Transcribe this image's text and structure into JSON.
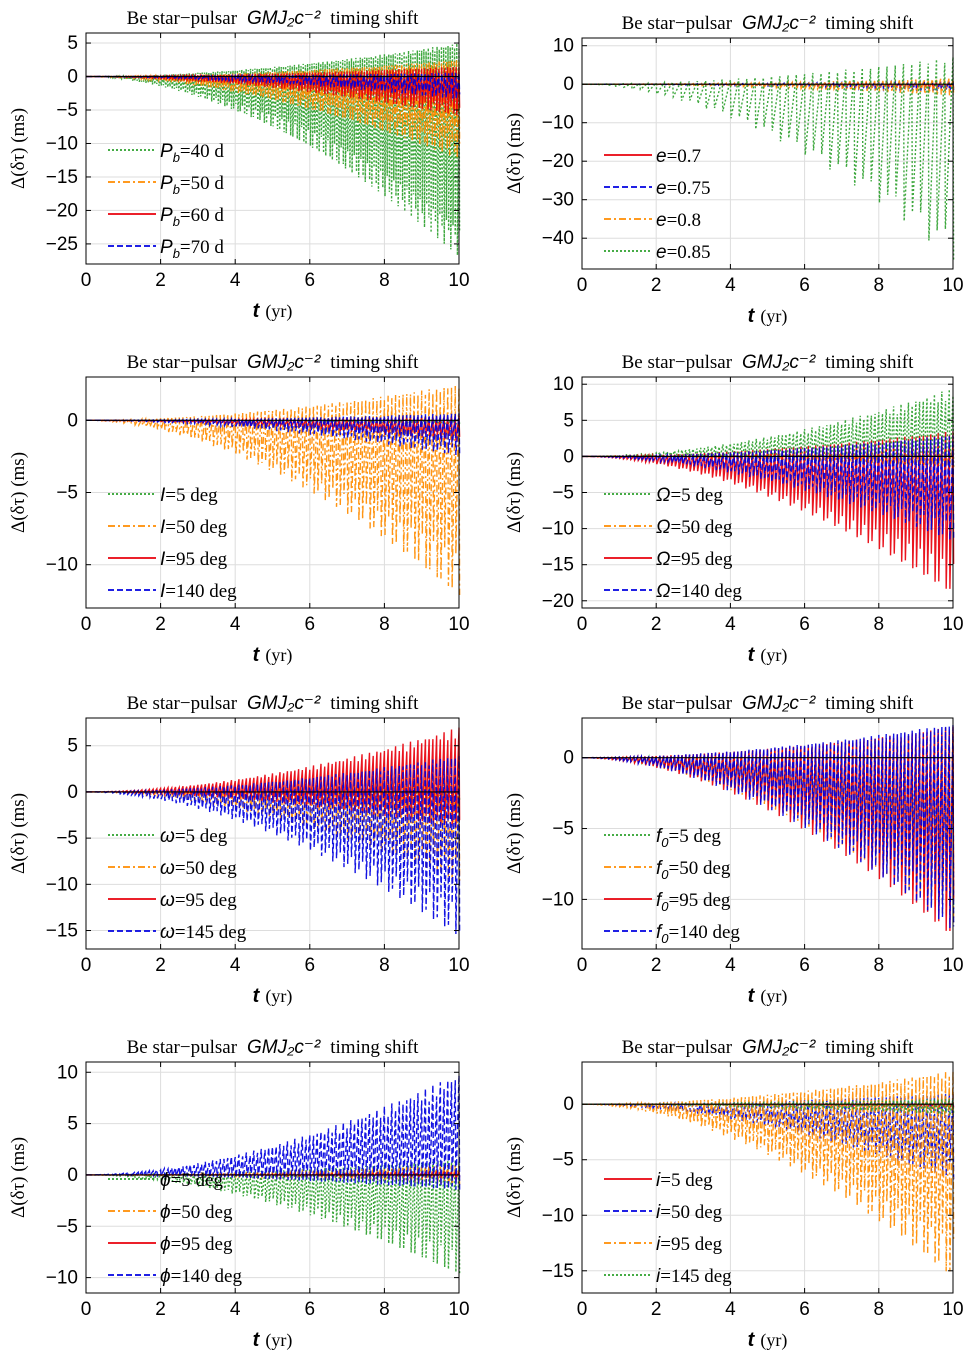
{
  "chart_data": [
    {
      "type": "line",
      "title_prefix": "Be star−pulsar",
      "title_math": "GMJ₂c⁻²",
      "title_suffix": "timing shift",
      "xlabel_sym": "t",
      "xlabel_unit": "(yr)",
      "ylabel": "Δ(δτ) (ms)",
      "xlim": [
        0,
        10
      ],
      "ylim": [
        -28,
        6.5
      ],
      "xticks": [
        0,
        2,
        4,
        6,
        8,
        10
      ],
      "yticks": [
        5,
        0,
        -5,
        -10,
        -15,
        -20,
        -25
      ],
      "grid": true,
      "legend_position": "left",
      "series": [
        {
          "sym": "P",
          "sub": "b",
          "name": "=40 d",
          "color": "#2ca02c",
          "style": "dotted",
          "upper_end": 5,
          "lower_end": -27,
          "density": 170
        },
        {
          "sym": "P",
          "sub": "b",
          "name": "=50 d",
          "color": "#ff8c00",
          "style": "dashdot",
          "upper_end": 2.5,
          "lower_end": -12.5,
          "density": 150
        },
        {
          "sym": "P",
          "sub": "b",
          "name": "=60 d",
          "color": "#e8000b",
          "style": "solid",
          "upper_end": 1.5,
          "lower_end": -6,
          "density": 130
        },
        {
          "sym": "P",
          "sub": "b",
          "name": "=70 d",
          "color": "#0000e0",
          "style": "dashed",
          "upper_end": 0.6,
          "lower_end": -3.5,
          "density": 110
        }
      ]
    },
    {
      "type": "line",
      "title_prefix": "Be star−pulsar",
      "title_math": "GMJ₂c⁻²",
      "title_suffix": "timing shift",
      "xlabel_sym": "t",
      "xlabel_unit": "(yr)",
      "ylabel": "Δ(δτ) (ms)",
      "xlim": [
        0,
        10
      ],
      "ylim": [
        -48,
        12
      ],
      "xticks": [
        0,
        2,
        4,
        6,
        8,
        10
      ],
      "yticks": [
        10,
        0,
        -10,
        -20,
        -30,
        -40
      ],
      "grid": true,
      "legend_position": "left",
      "series": [
        {
          "sym": "e",
          "sub": "",
          "name": "=0.7",
          "color": "#e8000b",
          "style": "solid",
          "upper_end": 0.5,
          "lower_end": -1,
          "density": 90
        },
        {
          "sym": "e",
          "sub": "",
          "name": "=0.75",
          "color": "#0000e0",
          "style": "dashed",
          "upper_end": 0.8,
          "lower_end": -2,
          "density": 90
        },
        {
          "sym": "e",
          "sub": "",
          "name": "=0.8",
          "color": "#ff8c00",
          "style": "dashdot",
          "upper_end": 1.5,
          "lower_end": -3,
          "density": 90
        },
        {
          "sym": "e",
          "sub": "",
          "name": "=0.85",
          "color": "#2ca02c",
          "style": "dotted",
          "upper_end": 7,
          "lower_end": -46,
          "density": 45
        }
      ]
    },
    {
      "type": "line",
      "title_prefix": "Be star−pulsar",
      "title_math": "GMJ₂c⁻²",
      "title_suffix": "timing shift",
      "xlabel_sym": "t",
      "xlabel_unit": "(yr)",
      "ylabel": "Δ(δτ) (ms)",
      "xlim": [
        0,
        10
      ],
      "ylim": [
        -13,
        3
      ],
      "xticks": [
        0,
        2,
        4,
        6,
        8,
        10
      ],
      "yticks": [
        0,
        -5,
        -10
      ],
      "grid": true,
      "legend_position": "left",
      "series": [
        {
          "sym": "I",
          "sub": "",
          "name": "=5 deg",
          "color": "#2ca02c",
          "style": "dotted",
          "upper_end": 0.2,
          "lower_end": -0.3,
          "density": 100
        },
        {
          "sym": "I",
          "sub": "",
          "name": "=50 deg",
          "color": "#ff8c00",
          "style": "dashdot",
          "upper_end": 2.5,
          "lower_end": -12.5,
          "density": 100
        },
        {
          "sym": "I",
          "sub": "",
          "name": "=95 deg",
          "color": "#e8000b",
          "style": "solid",
          "upper_end": 0.3,
          "lower_end": -1.5,
          "density": 100
        },
        {
          "sym": "I",
          "sub": "",
          "name": "=140 deg",
          "color": "#0000e0",
          "style": "dashed",
          "upper_end": 0.5,
          "lower_end": -2.5,
          "density": 100
        }
      ]
    },
    {
      "type": "line",
      "title_prefix": "Be star−pulsar",
      "title_math": "GMJ₂c⁻²",
      "title_suffix": "timing shift",
      "xlabel_sym": "t",
      "xlabel_unit": "(yr)",
      "ylabel": "Δ(δτ) (ms)",
      "xlim": [
        0,
        10
      ],
      "ylim": [
        -21,
        11
      ],
      "xticks": [
        0,
        2,
        4,
        6,
        8,
        10
      ],
      "yticks": [
        10,
        5,
        0,
        -5,
        -10,
        -15,
        -20
      ],
      "grid": true,
      "legend_position": "left",
      "series": [
        {
          "sym": "Ω",
          "sub": "",
          "name": "=5 deg",
          "color": "#2ca02c",
          "style": "dotted",
          "upper_end": 9.5,
          "lower_end": -1.5,
          "density": 100
        },
        {
          "sym": "Ω",
          "sub": "",
          "name": "=50 deg",
          "color": "#ff8c00",
          "style": "dashdot",
          "upper_end": 1.5,
          "lower_end": -1.5,
          "density": 100
        },
        {
          "sym": "Ω",
          "sub": "",
          "name": "=95 deg",
          "color": "#e8000b",
          "style": "solid",
          "upper_end": 3.5,
          "lower_end": -19.5,
          "density": 100
        },
        {
          "sym": "Ω",
          "sub": "",
          "name": "=140 deg",
          "color": "#0000e0",
          "style": "dashed",
          "upper_end": 3,
          "lower_end": -12,
          "density": 100
        }
      ]
    },
    {
      "type": "line",
      "title_prefix": "Be star−pulsar",
      "title_math": "GMJ₂c⁻²",
      "title_suffix": "timing shift",
      "xlabel_sym": "t",
      "xlabel_unit": "(yr)",
      "ylabel": "Δ(δτ) (ms)",
      "xlim": [
        0,
        10
      ],
      "ylim": [
        -17,
        8
      ],
      "xticks": [
        0,
        2,
        4,
        6,
        8,
        10
      ],
      "yticks": [
        5,
        0,
        -5,
        -10,
        -15
      ],
      "grid": true,
      "legend_position": "left",
      "series": [
        {
          "sym": "ω",
          "sub": "",
          "name": "=5 deg",
          "color": "#2ca02c",
          "style": "dotted",
          "upper_end": 0.5,
          "lower_end": -1,
          "density": 100
        },
        {
          "sym": "ω",
          "sub": "",
          "name": "=50 deg",
          "color": "#ff8c00",
          "style": "dashdot",
          "upper_end": 2.5,
          "lower_end": -10,
          "density": 100
        },
        {
          "sym": "ω",
          "sub": "",
          "name": "=95 deg",
          "color": "#e8000b",
          "style": "solid",
          "upper_end": 7,
          "lower_end": -4,
          "density": 100
        },
        {
          "sym": "ω",
          "sub": "",
          "name": "=145 deg",
          "color": "#0000e0",
          "style": "dashed",
          "upper_end": 4,
          "lower_end": -16,
          "density": 100
        }
      ]
    },
    {
      "type": "line",
      "title_prefix": "Be star−pulsar",
      "title_math": "GMJ₂c⁻²",
      "title_suffix": "timing shift",
      "xlabel_sym": "t",
      "xlabel_unit": "(yr)",
      "ylabel": "Δ(δτ) (ms)",
      "xlim": [
        0,
        10
      ],
      "ylim": [
        -13.5,
        2.8
      ],
      "xticks": [
        0,
        2,
        4,
        6,
        8,
        10
      ],
      "yticks": [
        0,
        -5,
        -10
      ],
      "grid": true,
      "legend_position": "left",
      "series": [
        {
          "sym": "f",
          "sub": "0",
          "name": "=5 deg",
          "color": "#2ca02c",
          "style": "dotted",
          "upper_end": 1.5,
          "lower_end": -11,
          "density": 100
        },
        {
          "sym": "f",
          "sub": "0",
          "name": "=50 deg",
          "color": "#ff8c00",
          "style": "dashdot",
          "upper_end": 2,
          "lower_end": -12,
          "density": 100
        },
        {
          "sym": "f",
          "sub": "0",
          "name": "=95 deg",
          "color": "#e8000b",
          "style": "solid",
          "upper_end": 2.2,
          "lower_end": -13,
          "density": 100
        },
        {
          "sym": "f",
          "sub": "0",
          "name": "=140 deg",
          "color": "#0000e0",
          "style": "dashed",
          "upper_end": 2.4,
          "lower_end": -12.5,
          "density": 100
        }
      ]
    },
    {
      "type": "line",
      "title_prefix": "Be star−pulsar",
      "title_math": "GMJ₂c⁻²",
      "title_suffix": "timing shift",
      "xlabel_sym": "t",
      "xlabel_unit": "(yr)",
      "ylabel": "Δ(δτ) (ms)",
      "xlim": [
        0,
        10
      ],
      "ylim": [
        -11.5,
        11
      ],
      "xticks": [
        0,
        2,
        4,
        6,
        8,
        10
      ],
      "yticks": [
        10,
        5,
        0,
        -5,
        -10
      ],
      "grid": true,
      "legend_position": "left",
      "series": [
        {
          "sym": "ϕ",
          "sub": "",
          "name": "=5 deg",
          "color": "#2ca02c",
          "style": "dotted",
          "upper_end": 1.5,
          "lower_end": -10,
          "density": 100
        },
        {
          "sym": "ϕ",
          "sub": "",
          "name": "=50 deg",
          "color": "#ff8c00",
          "style": "dashdot",
          "upper_end": 1,
          "lower_end": -1,
          "density": 100
        },
        {
          "sym": "ϕ",
          "sub": "",
          "name": "=95 deg",
          "color": "#e8000b",
          "style": "solid",
          "upper_end": 0.3,
          "lower_end": -0.3,
          "density": 100
        },
        {
          "sym": "ϕ",
          "sub": "",
          "name": "=140 deg",
          "color": "#0000e0",
          "style": "dashed",
          "upper_end": 10,
          "lower_end": -1.5,
          "density": 100
        }
      ]
    },
    {
      "type": "line",
      "title_prefix": "Be star−pulsar",
      "title_math": "GMJ₂c⁻²",
      "title_suffix": "timing shift",
      "xlabel_sym": "t",
      "xlabel_unit": "(yr)",
      "ylabel": "Δ(δτ) (ms)",
      "xlim": [
        0,
        10
      ],
      "ylim": [
        -17,
        3.8
      ],
      "xticks": [
        0,
        2,
        4,
        6,
        8,
        10
      ],
      "yticks": [
        0,
        -5,
        -10,
        -15
      ],
      "grid": true,
      "legend_position": "left",
      "series": [
        {
          "sym": "i",
          "sub": "",
          "name": "=5 deg",
          "color": "#e8000b",
          "style": "solid",
          "upper_end": 0.2,
          "lower_end": -0.3,
          "density": 100
        },
        {
          "sym": "i",
          "sub": "",
          "name": "=50 deg",
          "color": "#0000e0",
          "style": "dashed",
          "upper_end": 1,
          "lower_end": -7,
          "density": 100
        },
        {
          "sym": "i",
          "sub": "",
          "name": "=95 deg",
          "color": "#ff8c00",
          "style": "dashdot",
          "upper_end": 3,
          "lower_end": -16,
          "density": 100
        },
        {
          "sym": "i",
          "sub": "",
          "name": "=145 deg",
          "color": "#2ca02c",
          "style": "dotted",
          "upper_end": 0.5,
          "lower_end": -1,
          "density": 100
        }
      ]
    }
  ]
}
